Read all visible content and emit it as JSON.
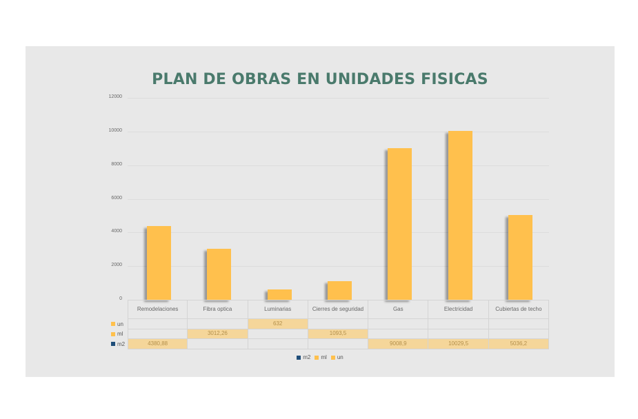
{
  "chart_data": {
    "type": "bar",
    "title": "PLAN DE OBRAS EN UNIDADES FISICAS",
    "xlabel": "",
    "ylabel": "",
    "ylim": [
      0,
      12000
    ],
    "yticks": [
      "0",
      "2000",
      "4000",
      "6000",
      "8000",
      "10000",
      "12000"
    ],
    "grid": true,
    "legend_position": "bottom",
    "categories": [
      "Remodelaciones",
      "Fibra optica",
      "Luminarias",
      "Cierres de seguridad",
      "Gas",
      "Electricidad",
      "Cubiertas de techo"
    ],
    "series": [
      {
        "name": "m2",
        "color": "#1f4e79",
        "values": [
          4380.88,
          null,
          null,
          null,
          9008.9,
          10029.5,
          5036.2
        ]
      },
      {
        "name": "ml",
        "color": "#ffc04d",
        "values": [
          null,
          3012.26,
          null,
          1093.5,
          null,
          null,
          null
        ]
      },
      {
        "name": "un",
        "color": "#ffc04d",
        "values": [
          null,
          null,
          632,
          null,
          null,
          null,
          null
        ]
      }
    ],
    "bar_color": "#ffc04d",
    "data_table": {
      "rows": [
        {
          "label": "un",
          "swatch": "#ffc04d",
          "cells": [
            "",
            "",
            "632",
            "",
            "",
            "",
            ""
          ]
        },
        {
          "label": "ml",
          "swatch": "#ffc04d",
          "cells": [
            "",
            "3012,26",
            "",
            "1093,5",
            "",
            "",
            ""
          ]
        },
        {
          "label": "m2",
          "swatch": "#1f4e79",
          "cells": [
            "4380,88",
            "",
            "",
            "",
            "9008,9",
            "10029,5",
            "5036,2"
          ]
        }
      ]
    },
    "legend": [
      {
        "label": "m2",
        "color": "#1f4e79"
      },
      {
        "label": "ml",
        "color": "#ffc04d"
      },
      {
        "label": "un",
        "color": "#ffc04d"
      }
    ]
  },
  "colors": {
    "title": "#4a7a6c",
    "panel_bg": "#e8e8e8",
    "page_bg": "#ffffff",
    "cell_highlight": "#f5d69a"
  }
}
